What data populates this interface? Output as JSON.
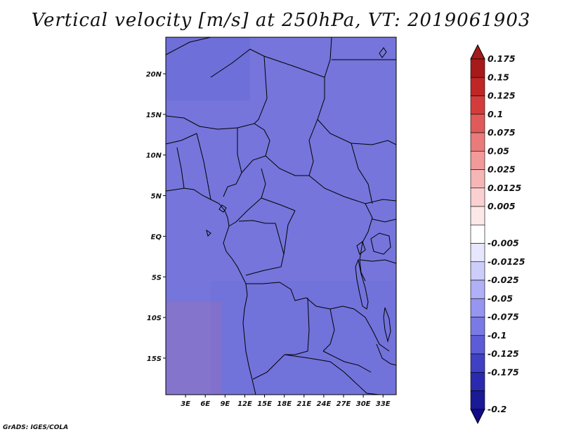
{
  "title": "Vertical velocity [m/s] at 250hPa, VT: 2019061903",
  "credit": "GrADS: IGES/COLA",
  "map": {
    "lon_range": [
      0,
      35
    ],
    "lat_range": [
      -19.5,
      24.5
    ],
    "lat_ticks": [
      {
        "value": 20,
        "label": "20N"
      },
      {
        "value": 15,
        "label": "15N"
      },
      {
        "value": 10,
        "label": "10N"
      },
      {
        "value": 5,
        "label": "5N"
      },
      {
        "value": 0,
        "label": "EQ"
      },
      {
        "value": -5,
        "label": "5S"
      },
      {
        "value": -10,
        "label": "10S"
      },
      {
        "value": -15,
        "label": "15S"
      }
    ],
    "lon_ticks": [
      {
        "value": 3,
        "label": "3E"
      },
      {
        "value": 6,
        "label": "6E"
      },
      {
        "value": 9,
        "label": "9E"
      },
      {
        "value": 12,
        "label": "12E"
      },
      {
        "value": 15,
        "label": "15E"
      },
      {
        "value": 18,
        "label": "18E"
      },
      {
        "value": 21,
        "label": "21E"
      },
      {
        "value": 24,
        "label": "24E"
      },
      {
        "value": 27,
        "label": "27E"
      },
      {
        "value": 30,
        "label": "30E"
      },
      {
        "value": 33,
        "label": "33E"
      }
    ]
  },
  "colorbar": {
    "bins": [
      {
        "label": "0.175",
        "color": "#a61a1a"
      },
      {
        "label": "0.15",
        "color": "#bf2626"
      },
      {
        "label": "0.125",
        "color": "#d43c3c"
      },
      {
        "label": "0.1",
        "color": "#e05a5a"
      },
      {
        "label": "0.075",
        "color": "#ea7b7b"
      },
      {
        "label": "0.05",
        "color": "#f29a9a"
      },
      {
        "label": "0.025",
        "color": "#f6b6b6"
      },
      {
        "label": "0.0125",
        "color": "#fad0d0"
      },
      {
        "label": "0.005",
        "color": "#fde8e8"
      },
      {
        "label": "",
        "color": "#ffffff"
      },
      {
        "label": "-0.005",
        "color": "#e6e6ff"
      },
      {
        "label": "-0.0125",
        "color": "#cdcdfb"
      },
      {
        "label": "-0.025",
        "color": "#b0b0f7"
      },
      {
        "label": "-0.05",
        "color": "#9696f0"
      },
      {
        "label": "-0.075",
        "color": "#7a7ae6"
      },
      {
        "label": "-0.1",
        "color": "#5c5cd6"
      },
      {
        "label": "-0.125",
        "color": "#4040c4"
      },
      {
        "label": "-0.175",
        "color": "#2a2aae"
      },
      {
        "label": "-0.2",
        "color": "#1a1a96"
      }
    ],
    "top_color": "#a61a1a",
    "bottom_color": "#140a8c"
  }
}
